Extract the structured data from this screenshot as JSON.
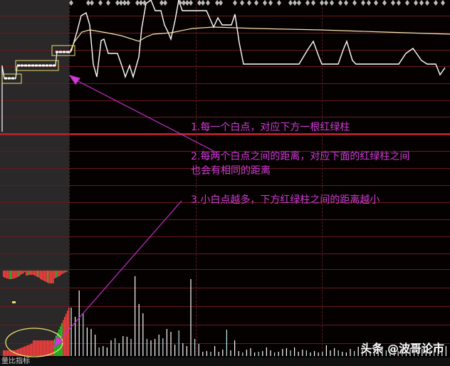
{
  "annotations": [
    "1.每一个白点，对应下方一根红绿柱",
    "2.每两个白点之间的距离，对应下面的红绿柱之间",
    "也会有相同的距离",
    "3.小白点越多，下方红绿柱之间的距离越小"
  ],
  "watermark": "头条 @波哥论市",
  "footer_label": "量比指标",
  "colors": {
    "background": "#050101",
    "grid": "#6a1a1e",
    "axis_bold": "#b0202a",
    "price_line": "#ffffff",
    "avg_line": "#f5e6b0",
    "annotation": "#d23ad8",
    "highlight_box": "#e8e070",
    "rise_bar": "#ff4040",
    "fall_bar": "#22cc22"
  },
  "volume_relative": [
    68,
    55,
    92,
    60,
    40,
    38,
    30,
    12,
    14,
    12,
    22,
    25,
    18,
    28,
    27,
    24,
    112,
    73,
    60,
    24,
    22,
    24,
    30,
    25,
    38,
    34,
    16,
    36,
    18,
    14,
    108,
    24,
    17,
    6,
    7,
    6,
    14,
    6,
    9,
    37,
    8,
    22,
    7,
    5,
    9,
    11,
    5,
    6,
    7,
    12,
    8,
    5,
    6,
    10,
    11,
    8,
    12,
    6,
    9,
    8,
    5,
    7,
    5,
    6,
    15,
    8,
    11,
    8,
    6,
    5,
    10,
    7,
    13,
    9,
    6,
    7,
    8,
    9,
    14,
    8,
    10,
    12,
    7,
    10,
    8,
    11,
    9,
    13,
    10,
    9,
    8,
    11,
    10,
    12,
    14
  ]
}
